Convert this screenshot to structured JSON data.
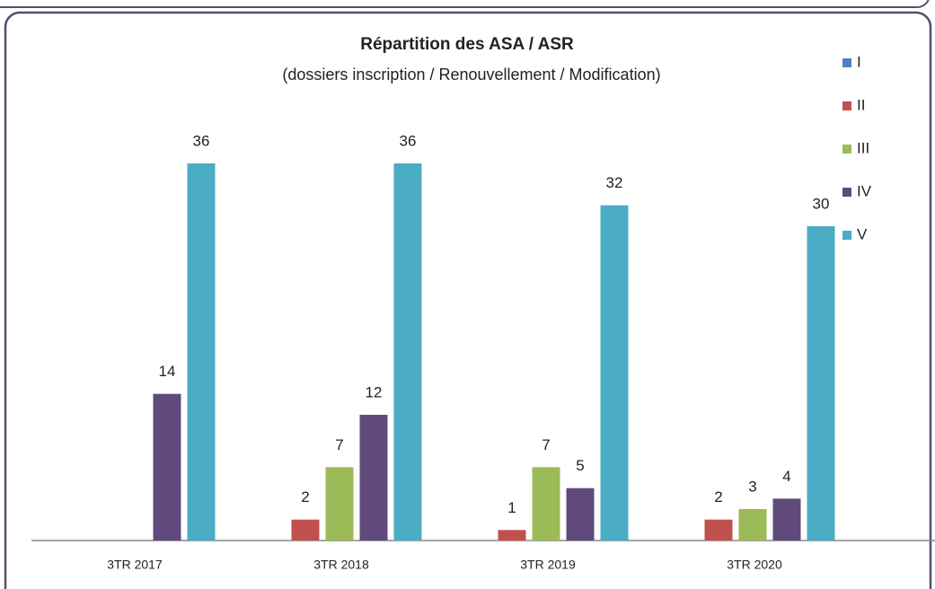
{
  "chart_data": {
    "type": "bar",
    "title": "Répartition des ASA / ASR",
    "subtitle": "(dossiers inscription / Renouvellement  / Modification)",
    "categories": [
      "3TR 2017",
      "3TR 2018",
      "3TR 2019",
      "3TR 2020"
    ],
    "series": [
      {
        "name": "I",
        "color": "#4f81bd",
        "values": [
          null,
          null,
          null,
          null
        ]
      },
      {
        "name": "II",
        "color": "#c0504d",
        "values": [
          null,
          2,
          1,
          2
        ]
      },
      {
        "name": "III",
        "color": "#9bbb59",
        "values": [
          null,
          7,
          7,
          3
        ]
      },
      {
        "name": "IV",
        "color": "#604a7b",
        "values": [
          14,
          12,
          5,
          4
        ]
      },
      {
        "name": "V",
        "color": "#4bacc6",
        "values": [
          36,
          36,
          32,
          30
        ]
      }
    ],
    "legend": "right"
  }
}
